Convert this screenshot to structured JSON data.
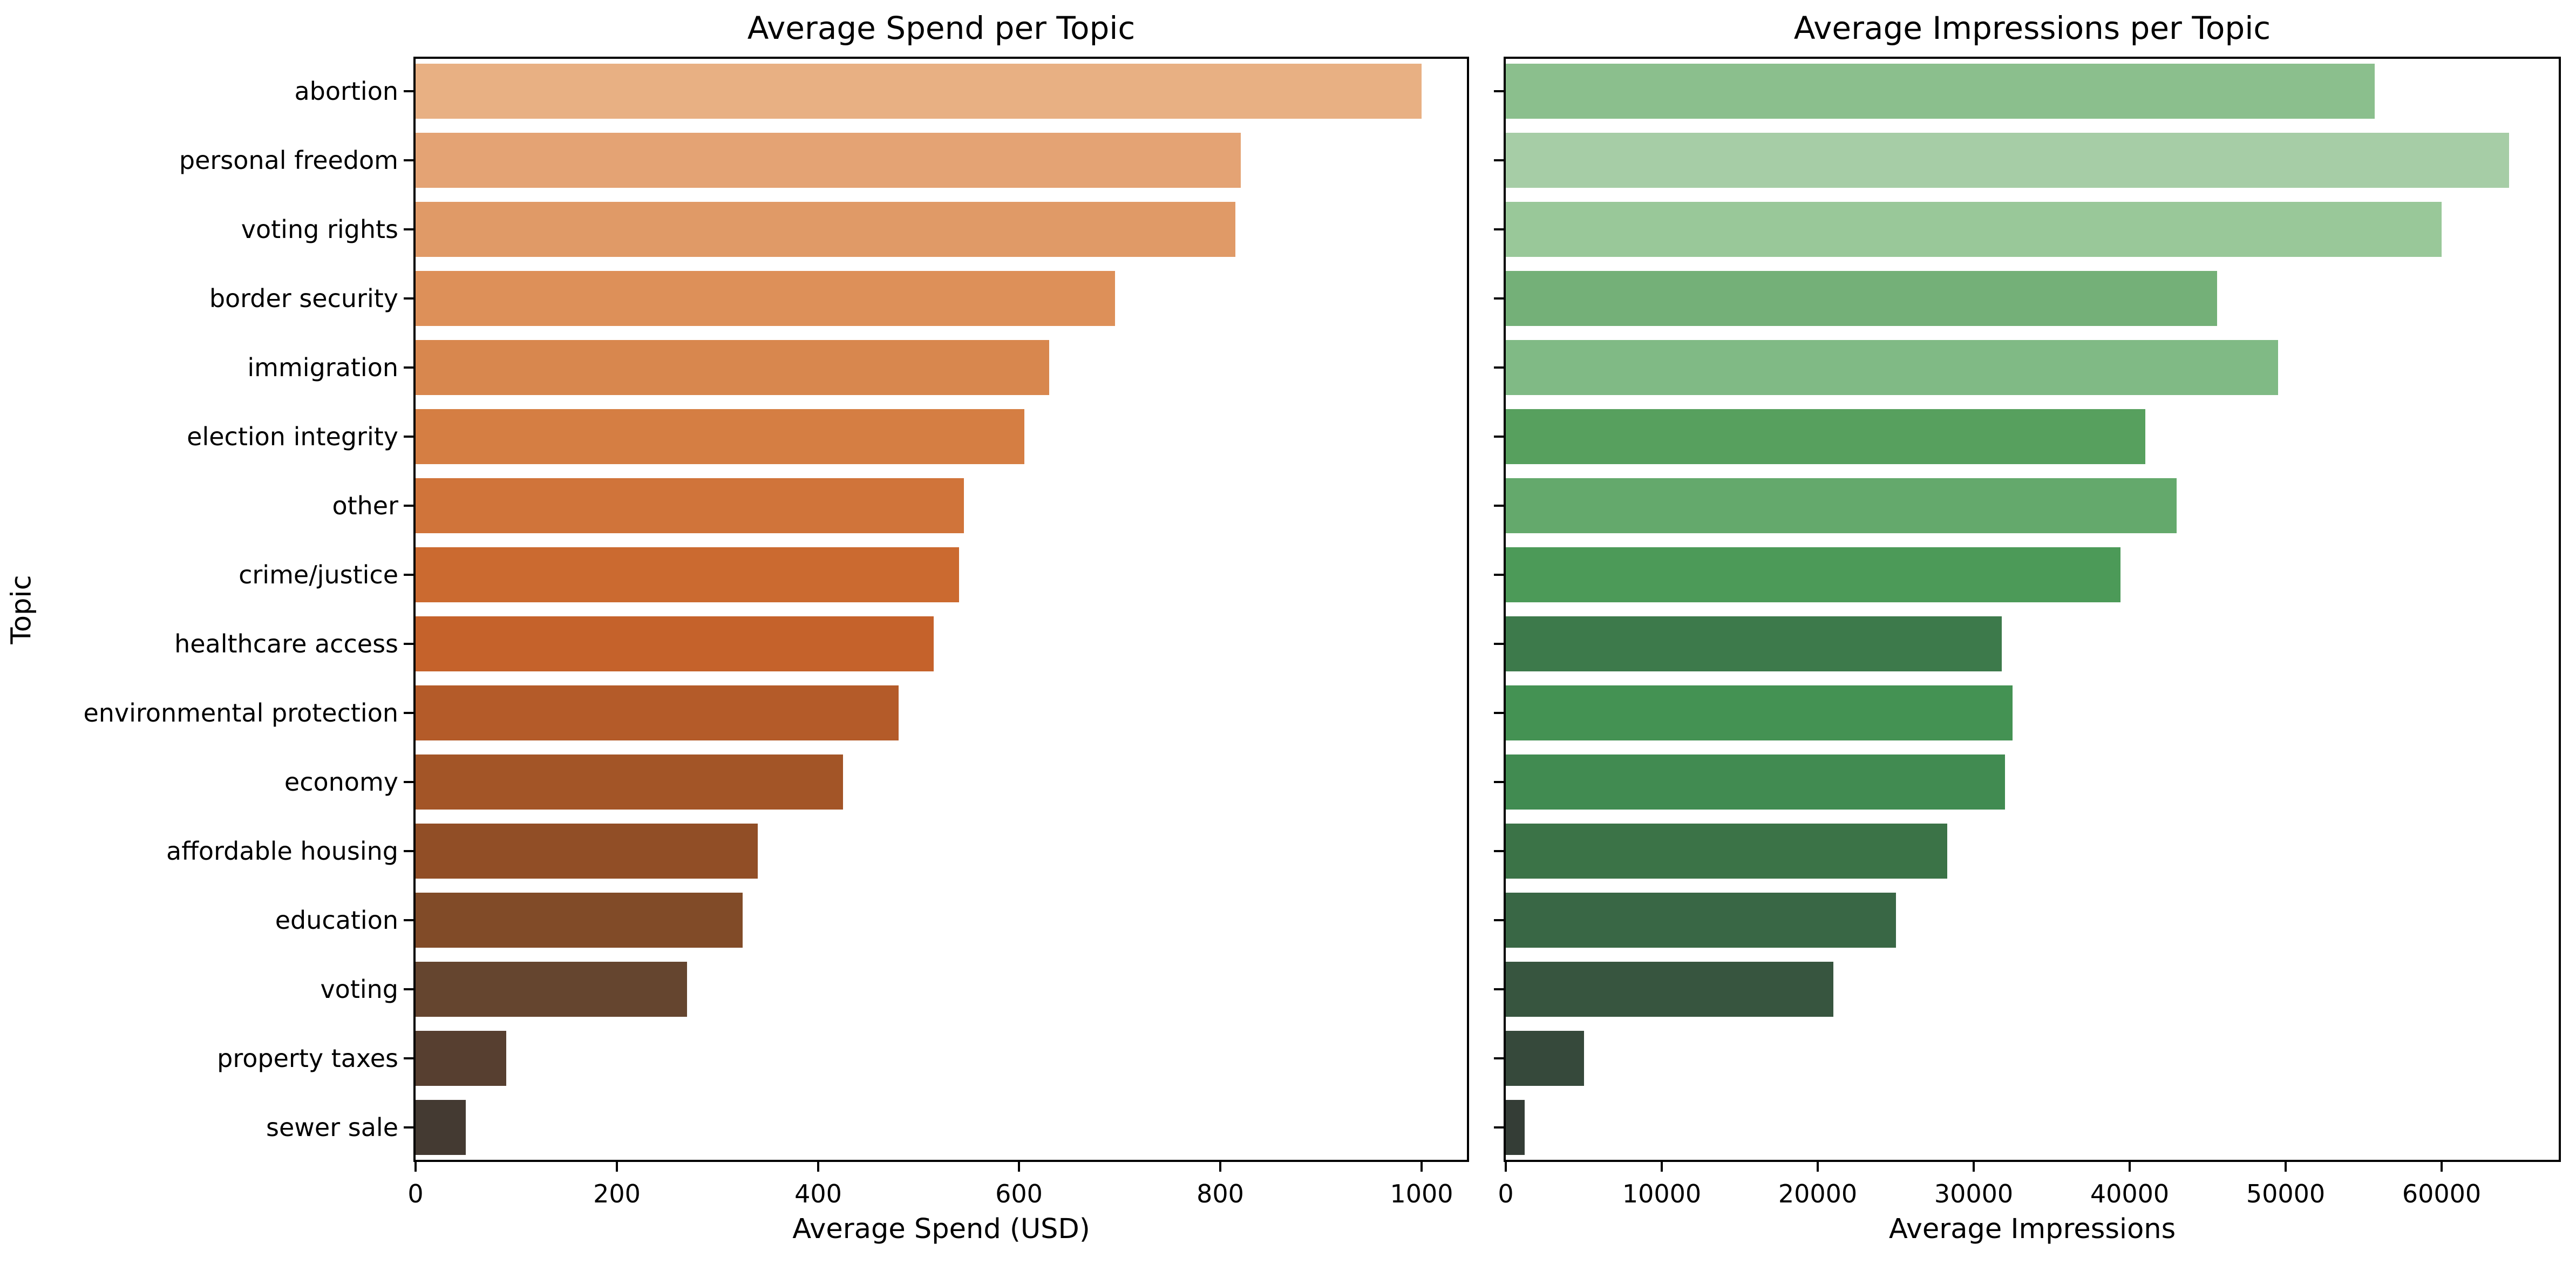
{
  "figure": {
    "background": "#ffffff",
    "text_color": "#000000",
    "ylabel": "Topic"
  },
  "chart_data": [
    {
      "type": "bar",
      "orientation": "horizontal",
      "title": "Average Spend per Topic",
      "xlabel": "Average Spend (USD)",
      "ylabel": "Topic",
      "categories": [
        "abortion",
        "personal freedom",
        "voting rights",
        "border security",
        "immigration",
        "election integrity",
        "other",
        "crime/justice",
        "healthcare access",
        "environmental protection",
        "economy",
        "affordable housing",
        "education",
        "voting",
        "property taxes",
        "sewer sale"
      ],
      "values": [
        1000,
        820,
        815,
        695,
        630,
        605,
        545,
        540,
        515,
        480,
        425,
        340,
        325,
        270,
        90,
        50
      ],
      "bar_colors": [
        "#e8b083",
        "#e4a374",
        "#e09a67",
        "#dd9059",
        "#d8874e",
        "#d57e43",
        "#d0743a",
        "#cb6a30",
        "#c5622b",
        "#b45b29",
        "#a35527",
        "#914e26",
        "#814b28",
        "#65452f",
        "#573f30",
        "#443a32"
      ],
      "xticks": [
        0,
        200,
        400,
        600,
        800,
        1000
      ],
      "xtick_labels": [
        "0",
        "200",
        "400",
        "600",
        "800",
        "1000"
      ],
      "xlim": [
        0,
        1045
      ],
      "grid": false,
      "legend": null
    },
    {
      "type": "bar",
      "orientation": "horizontal",
      "title": "Average Impressions per Topic",
      "xlabel": "Average Impressions",
      "ylabel": "",
      "categories": [
        "abortion",
        "personal freedom",
        "voting rights",
        "border security",
        "immigration",
        "election integrity",
        "other",
        "crime/justice",
        "healthcare access",
        "environmental protection",
        "economy",
        "affordable housing",
        "education",
        "voting",
        "property taxes",
        "sewer sale"
      ],
      "values": [
        55700,
        64300,
        60000,
        45600,
        49500,
        41000,
        43000,
        39400,
        31800,
        32500,
        32000,
        28300,
        25000,
        21000,
        5000,
        1200
      ],
      "bar_colors": [
        "#8bbf8d",
        "#a6cda6",
        "#99c899",
        "#74b078",
        "#80ba85",
        "#57a05e",
        "#64a96c",
        "#4c9a58",
        "#3d7a4b",
        "#449253",
        "#418b51",
        "#3b7347",
        "#396745",
        "#37553f",
        "#36493b",
        "#343d36"
      ],
      "xticks": [
        0,
        10000,
        20000,
        30000,
        40000,
        50000,
        60000
      ],
      "xtick_labels": [
        "0",
        "10000",
        "20000",
        "30000",
        "40000",
        "50000",
        "60000"
      ],
      "xlim": [
        0,
        67500
      ],
      "grid": false,
      "legend": null
    }
  ]
}
